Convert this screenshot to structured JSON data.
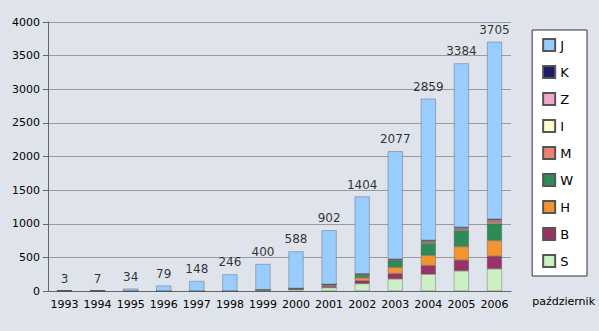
{
  "chart_data": {
    "type": "bar",
    "stacked": true,
    "grid": true,
    "legend": "right",
    "categories": [
      "1993",
      "1994",
      "1995",
      "1996",
      "1997",
      "1998",
      "1999",
      "2000",
      "2001",
      "2002",
      "2003",
      "2004",
      "2005",
      "2006"
    ],
    "annotation": "październik",
    "ylim": [
      0,
      4000
    ],
    "yticks": [
      0,
      500,
      1000,
      1500,
      2000,
      2500,
      3000,
      3500,
      4000
    ],
    "totals": [
      3,
      7,
      34,
      79,
      148,
      246,
      400,
      588,
      902,
      1404,
      2077,
      2859,
      3384,
      3705
    ],
    "series": [
      {
        "name": "J",
        "color": "#99ccff",
        "values": [
          3,
          7,
          34,
          79,
          148,
          246,
          380,
          548,
          802,
          1146,
          1602,
          2104,
          2434,
          2635
        ]
      },
      {
        "name": "K",
        "color": "#1a1a66",
        "values": [
          0,
          0,
          0,
          0,
          0,
          0,
          0,
          0,
          0,
          3,
          5,
          10,
          10,
          15
        ]
      },
      {
        "name": "Z",
        "color": "#f2a7c9",
        "values": [
          0,
          0,
          0,
          0,
          0,
          0,
          0,
          0,
          0,
          5,
          5,
          5,
          10,
          15
        ]
      },
      {
        "name": "I",
        "color": "#ffffcc",
        "values": [
          0,
          0,
          0,
          0,
          0,
          0,
          0,
          5,
          0,
          5,
          5,
          10,
          10,
          10
        ]
      },
      {
        "name": "M",
        "color": "#f08070",
        "values": [
          0,
          0,
          0,
          0,
          0,
          0,
          0,
          0,
          5,
          10,
          10,
          20,
          20,
          30
        ]
      },
      {
        "name": "W",
        "color": "#2e8b57",
        "values": [
          0,
          0,
          0,
          0,
          0,
          0,
          0,
          0,
          10,
          40,
          100,
          180,
          240,
          250
        ]
      },
      {
        "name": "H",
        "color": "#f39430",
        "values": [
          0,
          0,
          0,
          0,
          0,
          0,
          0,
          5,
          15,
          40,
          90,
          150,
          200,
          230
        ]
      },
      {
        "name": "B",
        "color": "#993366",
        "values": [
          0,
          0,
          0,
          0,
          0,
          0,
          0,
          5,
          20,
          45,
          80,
          130,
          160,
          190
        ]
      },
      {
        "name": "S",
        "color": "#ccf0c4",
        "values": [
          0,
          0,
          0,
          0,
          0,
          0,
          20,
          25,
          50,
          110,
          180,
          250,
          300,
          330
        ]
      }
    ]
  }
}
